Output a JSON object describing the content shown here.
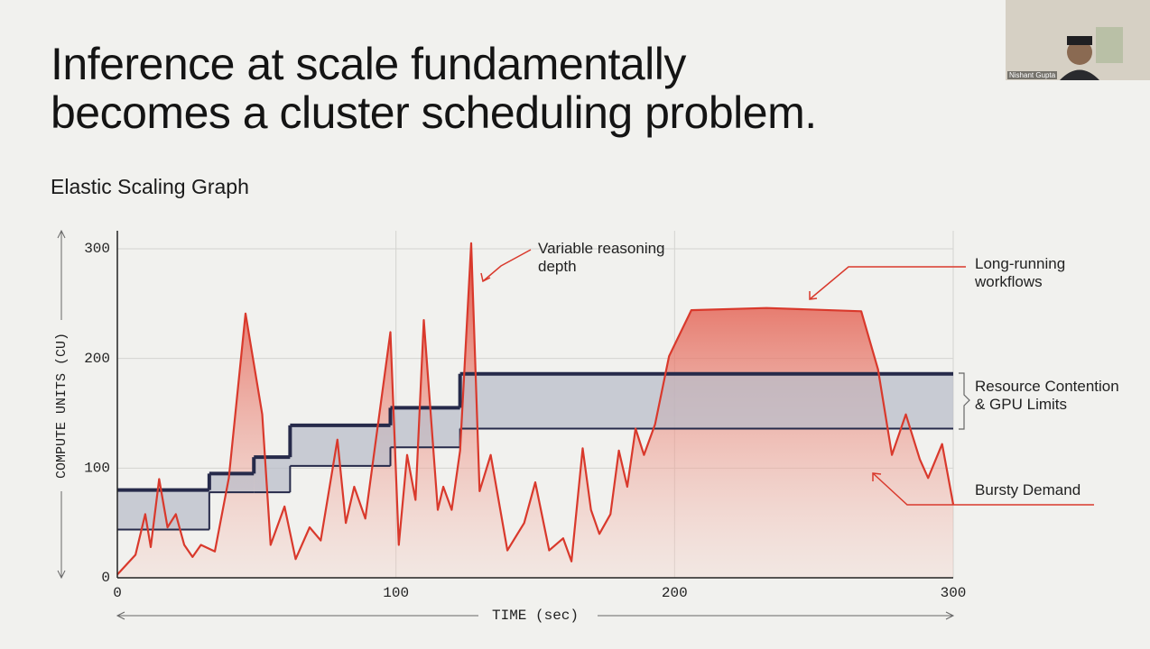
{
  "slide": {
    "title_lines": [
      "Inference at scale fundamentally",
      "becomes a cluster scheduling problem."
    ]
  },
  "video": {
    "participant": "Nishant Gupta"
  },
  "chart_data": {
    "type": "line",
    "title": "Elastic Scaling Graph",
    "x_label": "TIME (sec)",
    "y_label": "COMPUTE UNITS (CU)",
    "xlim": [
      0,
      300
    ],
    "xticks": [
      0,
      100,
      200,
      300
    ],
    "ylim": [
      0,
      300
    ],
    "yticks": [
      0,
      100,
      200,
      300
    ],
    "grid": true,
    "series": [
      {
        "color": "#d9392c",
        "x": [
          0,
          6.5,
          10,
          12,
          15,
          18,
          21,
          24,
          27,
          30,
          35,
          40,
          46,
          52,
          55,
          60,
          64,
          69,
          73,
          79,
          82,
          85,
          89,
          98,
          101,
          104,
          107,
          110,
          115,
          117,
          120,
          123,
          127,
          130,
          134,
          140,
          146,
          150,
          155,
          160,
          163,
          167,
          170,
          173,
          177,
          180,
          183,
          186,
          189,
          193,
          198,
          206,
          233,
          267,
          273,
          278,
          283,
          288,
          291,
          296,
          300
        ],
        "values": [
          3,
          21,
          58,
          28,
          90,
          46,
          58,
          30,
          19,
          30,
          24,
          91,
          241,
          149,
          30,
          65,
          17,
          46,
          34,
          126,
          50,
          83,
          54,
          224,
          30,
          112,
          71,
          235,
          62,
          83,
          62,
          116,
          305,
          79,
          112,
          25,
          50,
          87,
          25,
          36,
          15,
          118,
          62,
          40,
          58,
          116,
          83,
          136,
          112,
          140,
          202,
          244,
          246,
          243,
          190,
          112,
          149,
          108,
          91,
          122,
          67
        ]
      },
      {
        "color": "#262a4a",
        "bins": [
          0,
          33,
          49,
          62,
          98,
          123,
          300
        ],
        "values": [
          80,
          95,
          110,
          139,
          155,
          186
        ]
      },
      {
        "color": "#262a4a",
        "bins": [
          0,
          33,
          49,
          62,
          98,
          123,
          300
        ],
        "values": [
          44,
          78,
          78,
          102,
          119,
          136
        ]
      }
    ],
    "annotations": [
      "Variable reasoning depth",
      "Long-running workflows",
      "Resource Contention & GPU Limits",
      "Bursty Demand"
    ]
  }
}
